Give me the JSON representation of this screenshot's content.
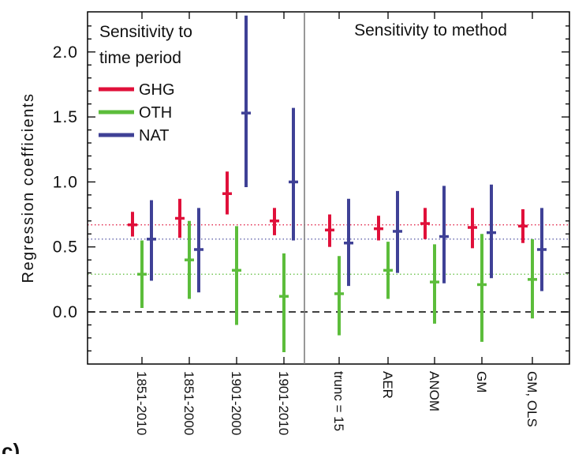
{
  "chart_data": {
    "type": "scatter",
    "subtype": "errorbar",
    "ylabel": "Regression  coefficients",
    "ylim": [
      -0.4,
      2.3
    ],
    "yticks": [
      0.0,
      0.5,
      1.0,
      1.5,
      2.0
    ],
    "ytick_labels": [
      "0.0",
      "0.5",
      "1.0",
      "1.5",
      "2.0"
    ],
    "categories": [
      "1851-2010",
      "1851-2000",
      "1901-2000",
      "1901-2010",
      "trunc = 15",
      "AER",
      "ANOM",
      "GM",
      "GM, OLS"
    ],
    "panels": [
      {
        "title_line1": "Sensitivity to",
        "title_line2": "time period"
      },
      {
        "title_line1": "Sensitivity to method",
        "title_line2": ""
      }
    ],
    "series": [
      {
        "name": "GHG",
        "color": "#e0103a",
        "best": [
          0.67,
          0.72,
          0.91,
          0.7,
          0.63,
          0.64,
          0.68,
          0.65,
          0.66
        ],
        "lower": [
          0.58,
          0.57,
          0.75,
          0.59,
          0.5,
          0.55,
          0.56,
          0.49,
          0.53
        ],
        "upper": [
          0.77,
          0.87,
          1.08,
          0.8,
          0.75,
          0.74,
          0.8,
          0.8,
          0.79
        ]
      },
      {
        "name": "OTH",
        "color": "#5cbd3b",
        "best": [
          0.29,
          0.4,
          0.32,
          0.12,
          0.14,
          0.32,
          0.23,
          0.21,
          0.25
        ],
        "lower": [
          0.03,
          0.1,
          -0.1,
          -0.31,
          -0.18,
          0.1,
          -0.09,
          -0.23,
          -0.05
        ],
        "upper": [
          0.55,
          0.7,
          0.66,
          0.45,
          0.43,
          0.54,
          0.52,
          0.6,
          0.56
        ]
      },
      {
        "name": "NAT",
        "color": "#3f4196",
        "best": [
          0.56,
          0.48,
          1.53,
          1.0,
          0.53,
          0.62,
          0.58,
          0.61,
          0.48
        ],
        "lower": [
          0.24,
          0.15,
          0.96,
          0.55,
          0.2,
          0.3,
          0.22,
          0.26,
          0.16
        ],
        "upper": [
          0.86,
          0.8,
          2.28,
          1.57,
          0.87,
          0.93,
          0.97,
          0.98,
          0.8
        ]
      }
    ],
    "reference_lines": [
      {
        "series": "GHG",
        "value": 0.67,
        "style": "dotted"
      },
      {
        "series": "NAT",
        "value": 0.56,
        "style": "dotted"
      },
      {
        "series": "OTH",
        "value": 0.29,
        "style": "dotted"
      },
      {
        "series": "zero",
        "value": 0.0,
        "style": "dashed"
      }
    ],
    "legend": {
      "placement": "top-left",
      "entries": [
        "GHG",
        "OTH",
        "NAT"
      ]
    },
    "panel_label": "c)",
    "grid": false
  }
}
